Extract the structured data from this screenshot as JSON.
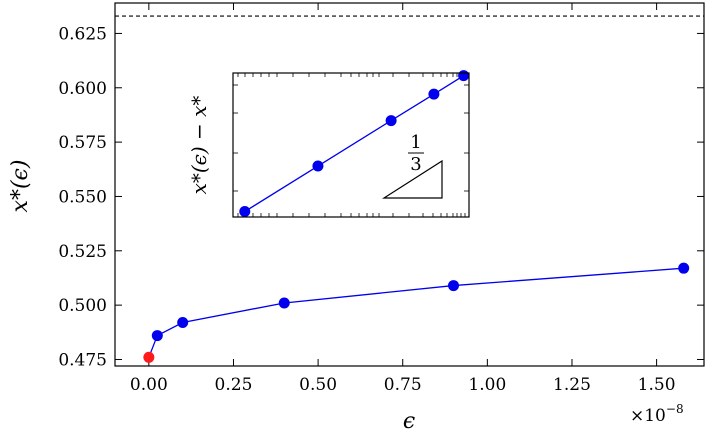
{
  "chart_data": [
    {
      "type": "line",
      "xlabel": "ϵ",
      "ylabel": "x*(ϵ)",
      "x_multiplier_label": "×10",
      "x_multiplier_exponent": "−8",
      "xlim": [
        -0.1,
        1.64
      ],
      "ylim": [
        0.472,
        0.639
      ],
      "x_ticks": [
        0.0,
        0.25,
        0.5,
        0.75,
        1.0,
        1.25,
        1.5
      ],
      "x_tick_labels": [
        "0.00",
        "0.25",
        "0.50",
        "0.75",
        "1.00",
        "1.25",
        "1.50"
      ],
      "y_ticks": [
        0.475,
        0.5,
        0.525,
        0.55,
        0.575,
        0.6,
        0.625
      ],
      "y_tick_labels": [
        "0.475",
        "0.500",
        "0.525",
        "0.550",
        "0.575",
        "0.600",
        "0.625"
      ],
      "reference_line": {
        "y": 0.633,
        "style": "dashed",
        "color": "#000000"
      },
      "series": [
        {
          "x": [
            0.0,
            0.025,
            0.1,
            0.4,
            0.9,
            1.58
          ],
          "y": [
            0.476,
            0.486,
            0.492,
            0.501,
            0.509,
            0.517
          ],
          "color": "#0000ee",
          "first_point_color": "#ff1a1a"
        }
      ],
      "grid": false
    },
    {
      "type": "line",
      "inset": true,
      "ylabel": "x*(ϵ) − x*",
      "x_scale": "log",
      "y_scale": "log",
      "slope_label_numerator": "1",
      "slope_label_denominator": "3",
      "series": [
        {
          "points": [
            [
              0.025,
              0.0148
            ],
            [
              0.1,
              0.0235
            ],
            [
              0.4,
              0.0373
            ],
            [
              0.9,
              0.0488
            ],
            [
              1.58,
              0.0589
            ]
          ],
          "color": "#0000ee"
        }
      ]
    }
  ]
}
